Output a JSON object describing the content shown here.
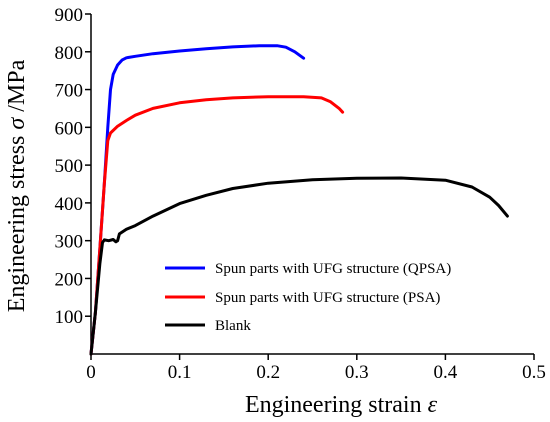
{
  "chart_data": {
    "type": "line",
    "title": "",
    "xlabel_text": "Engineering strain ",
    "xlabel_symbol": "ε",
    "ylabel_text": "Engineering stress ",
    "ylabel_symbol": "σ",
    "ylabel_unit": " /MPa",
    "xlim": [
      0,
      0.5
    ],
    "ylim": [
      0,
      900
    ],
    "xticks": [
      0,
      0.1,
      0.2,
      0.3,
      0.4,
      0.5
    ],
    "xtick_labels": [
      "0",
      "0.1",
      "0.2",
      "0.3",
      "0.4",
      "0.5"
    ],
    "yticks": [
      100,
      200,
      300,
      400,
      500,
      600,
      700,
      800,
      900
    ],
    "ytick_labels": [
      "100",
      "200",
      "300",
      "400",
      "500",
      "600",
      "700",
      "800",
      "900"
    ],
    "grid": false,
    "legend_position": "lower-right",
    "series": [
      {
        "name": "Spun parts with UFG structure (QPSA)",
        "color": "#0000ff",
        "points": [
          [
            0,
            0
          ],
          [
            0.005,
            110
          ],
          [
            0.01,
            280
          ],
          [
            0.015,
            450
          ],
          [
            0.019,
            600
          ],
          [
            0.022,
            700
          ],
          [
            0.025,
            740
          ],
          [
            0.03,
            765
          ],
          [
            0.035,
            778
          ],
          [
            0.04,
            784
          ],
          [
            0.05,
            788
          ],
          [
            0.07,
            795
          ],
          [
            0.1,
            802
          ],
          [
            0.13,
            808
          ],
          [
            0.16,
            813
          ],
          [
            0.19,
            816
          ],
          [
            0.21,
            816
          ],
          [
            0.22,
            812
          ],
          [
            0.23,
            800
          ],
          [
            0.24,
            783
          ]
        ]
      },
      {
        "name": "Spun parts with UFG structure (PSA)",
        "color": "#ff0000",
        "points": [
          [
            0,
            0
          ],
          [
            0.005,
            110
          ],
          [
            0.01,
            280
          ],
          [
            0.015,
            450
          ],
          [
            0.019,
            565
          ],
          [
            0.022,
            585
          ],
          [
            0.03,
            603
          ],
          [
            0.04,
            618
          ],
          [
            0.05,
            632
          ],
          [
            0.07,
            650
          ],
          [
            0.1,
            665
          ],
          [
            0.13,
            673
          ],
          [
            0.16,
            678
          ],
          [
            0.2,
            681
          ],
          [
            0.24,
            681
          ],
          [
            0.26,
            678
          ],
          [
            0.27,
            668
          ],
          [
            0.28,
            650
          ],
          [
            0.284,
            640
          ]
        ]
      },
      {
        "name": "Blank",
        "color": "#000000",
        "points": [
          [
            0,
            0
          ],
          [
            0.005,
            110
          ],
          [
            0.01,
            240
          ],
          [
            0.013,
            295
          ],
          [
            0.015,
            302
          ],
          [
            0.02,
            300
          ],
          [
            0.025,
            303
          ],
          [
            0.028,
            297
          ],
          [
            0.03,
            300
          ],
          [
            0.032,
            318
          ],
          [
            0.04,
            330
          ],
          [
            0.05,
            340
          ],
          [
            0.07,
            365
          ],
          [
            0.1,
            398
          ],
          [
            0.13,
            420
          ],
          [
            0.16,
            438
          ],
          [
            0.2,
            452
          ],
          [
            0.25,
            461
          ],
          [
            0.3,
            465
          ],
          [
            0.35,
            466
          ],
          [
            0.4,
            460
          ],
          [
            0.43,
            442
          ],
          [
            0.45,
            415
          ],
          [
            0.46,
            393
          ],
          [
            0.47,
            365
          ]
        ]
      }
    ]
  }
}
